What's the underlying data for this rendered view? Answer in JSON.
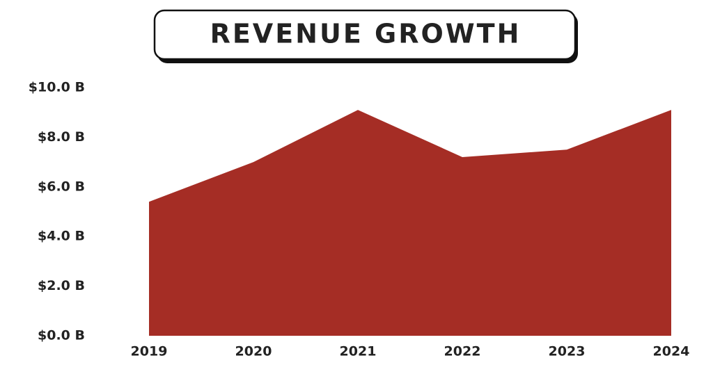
{
  "chart_data": {
    "type": "area",
    "title": "REVENUE GROWTH",
    "categories": [
      "2019",
      "2020",
      "2021",
      "2022",
      "2023",
      "2024"
    ],
    "values": [
      5.4,
      7.0,
      9.1,
      7.2,
      7.5,
      9.1
    ],
    "color": "#a52d25",
    "ylim": [
      0,
      10
    ],
    "yticks": [
      {
        "value": 0,
        "label": "$0.0 B"
      },
      {
        "value": 2,
        "label": "$2.0 B"
      },
      {
        "value": 4,
        "label": "$4.0 B"
      },
      {
        "value": 6,
        "label": "$6.0 B"
      },
      {
        "value": 8,
        "label": "$8.0 B"
      },
      {
        "value": 10,
        "label": "$10.0 B"
      }
    ],
    "grid": false
  }
}
